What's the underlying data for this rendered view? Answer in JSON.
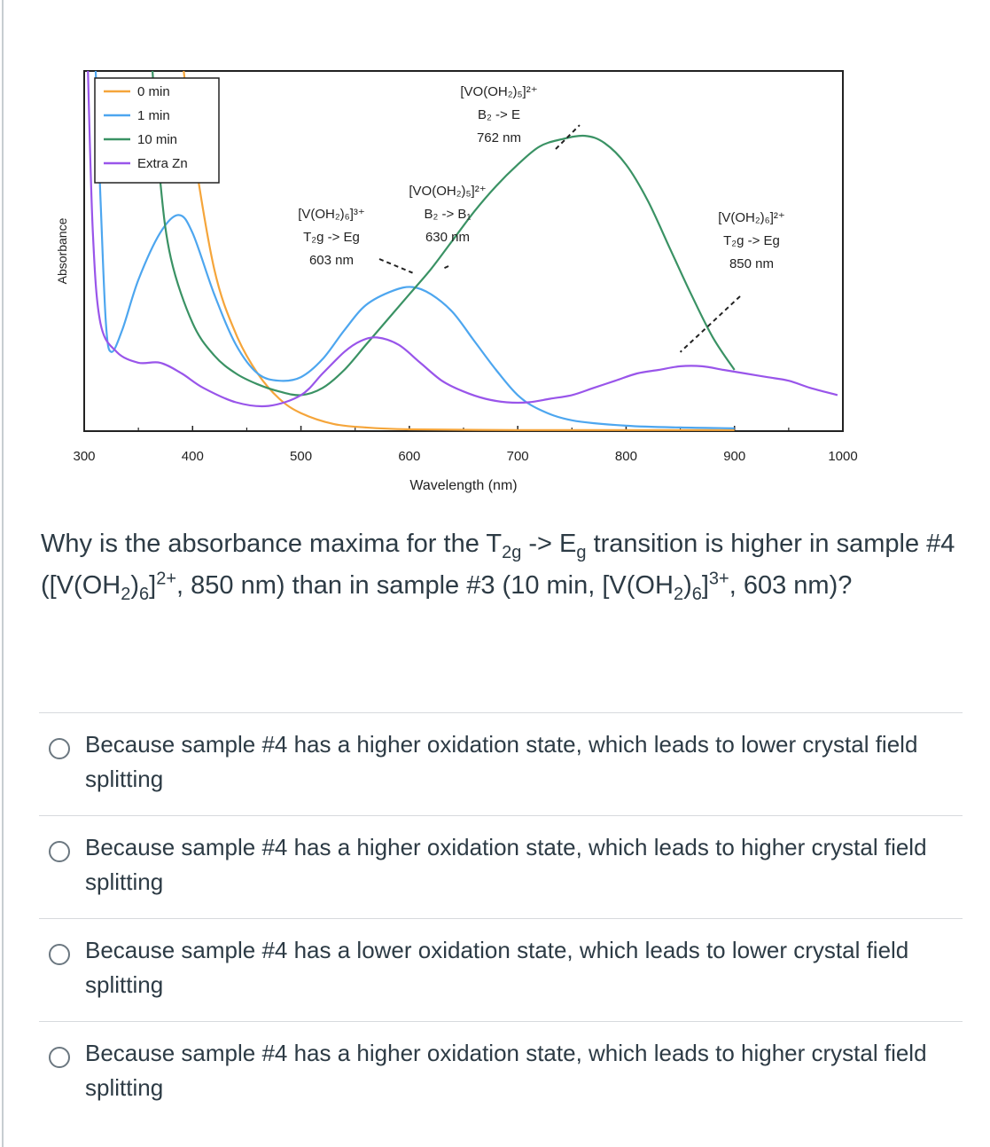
{
  "chart_data": {
    "type": "line",
    "xlabel": "Wavelength (nm)",
    "ylabel": "Absorbance",
    "xlim": [
      300,
      1000
    ],
    "ylim": [
      0,
      1
    ],
    "x_ticks": [
      "300",
      "400",
      "500",
      "600",
      "700",
      "800",
      "900",
      "1000"
    ],
    "grid": false,
    "legend_position": "top-left",
    "series": [
      {
        "name": "0 min",
        "color": "#f5a53a",
        "points": [
          [
            390,
            1.05
          ],
          [
            400,
            0.8
          ],
          [
            420,
            0.45
          ],
          [
            440,
            0.27
          ],
          [
            460,
            0.16
          ],
          [
            480,
            0.09
          ],
          [
            500,
            0.05
          ],
          [
            530,
            0.02
          ],
          [
            560,
            0.01
          ],
          [
            600,
            0.005
          ],
          [
            700,
            0.003
          ],
          [
            800,
            0.003
          ],
          [
            900,
            0.003
          ]
        ]
      },
      {
        "name": "1 min",
        "color": "#4da6ef",
        "points": [
          [
            310,
            1.05
          ],
          [
            315,
            0.65
          ],
          [
            320,
            0.3
          ],
          [
            325,
            0.22
          ],
          [
            335,
            0.28
          ],
          [
            350,
            0.42
          ],
          [
            370,
            0.55
          ],
          [
            387,
            0.6
          ],
          [
            400,
            0.55
          ],
          [
            420,
            0.38
          ],
          [
            440,
            0.24
          ],
          [
            460,
            0.16
          ],
          [
            480,
            0.14
          ],
          [
            500,
            0.15
          ],
          [
            520,
            0.2
          ],
          [
            540,
            0.28
          ],
          [
            560,
            0.35
          ],
          [
            585,
            0.39
          ],
          [
            603,
            0.4
          ],
          [
            620,
            0.38
          ],
          [
            640,
            0.33
          ],
          [
            660,
            0.25
          ],
          [
            680,
            0.17
          ],
          [
            700,
            0.1
          ],
          [
            720,
            0.06
          ],
          [
            750,
            0.03
          ],
          [
            800,
            0.015
          ],
          [
            850,
            0.01
          ],
          [
            900,
            0.008
          ]
        ]
      },
      {
        "name": "10 min",
        "color": "#3a9264",
        "points": [
          [
            362,
            1.05
          ],
          [
            370,
            0.7
          ],
          [
            380,
            0.48
          ],
          [
            400,
            0.3
          ],
          [
            420,
            0.21
          ],
          [
            440,
            0.16
          ],
          [
            460,
            0.13
          ],
          [
            480,
            0.11
          ],
          [
            500,
            0.1
          ],
          [
            520,
            0.12
          ],
          [
            540,
            0.17
          ],
          [
            560,
            0.24
          ],
          [
            580,
            0.31
          ],
          [
            600,
            0.38
          ],
          [
            620,
            0.45
          ],
          [
            640,
            0.53
          ],
          [
            660,
            0.61
          ],
          [
            680,
            0.68
          ],
          [
            700,
            0.74
          ],
          [
            720,
            0.79
          ],
          [
            740,
            0.81
          ],
          [
            762,
            0.82
          ],
          [
            780,
            0.8
          ],
          [
            800,
            0.74
          ],
          [
            820,
            0.64
          ],
          [
            840,
            0.51
          ],
          [
            860,
            0.38
          ],
          [
            880,
            0.26
          ],
          [
            900,
            0.17
          ]
        ]
      },
      {
        "name": "Extra Zn",
        "color": "#9955ea",
        "points": [
          [
            303,
            1.05
          ],
          [
            308,
            0.55
          ],
          [
            315,
            0.3
          ],
          [
            330,
            0.22
          ],
          [
            350,
            0.19
          ],
          [
            370,
            0.19
          ],
          [
            390,
            0.16
          ],
          [
            410,
            0.12
          ],
          [
            440,
            0.08
          ],
          [
            470,
            0.07
          ],
          [
            500,
            0.1
          ],
          [
            520,
            0.16
          ],
          [
            540,
            0.22
          ],
          [
            555,
            0.25
          ],
          [
            570,
            0.26
          ],
          [
            590,
            0.24
          ],
          [
            610,
            0.19
          ],
          [
            630,
            0.14
          ],
          [
            650,
            0.11
          ],
          [
            670,
            0.09
          ],
          [
            690,
            0.08
          ],
          [
            710,
            0.08
          ],
          [
            730,
            0.09
          ],
          [
            750,
            0.1
          ],
          [
            770,
            0.12
          ],
          [
            790,
            0.14
          ],
          [
            810,
            0.16
          ],
          [
            830,
            0.17
          ],
          [
            850,
            0.18
          ],
          [
            870,
            0.18
          ],
          [
            890,
            0.17
          ],
          [
            910,
            0.16
          ],
          [
            930,
            0.15
          ],
          [
            950,
            0.14
          ],
          [
            970,
            0.12
          ],
          [
            995,
            0.1
          ]
        ]
      }
    ],
    "annotations": [
      {
        "lines": [
          "[VO(OH₂)₅]²⁺",
          "B₂ -> E",
          "762 nm"
        ],
        "arrow_to": [
          762,
          0.82
        ]
      },
      {
        "lines": [
          "[VO(OH₂)₅]²⁺",
          "B₂ -> B₁",
          "630 nm"
        ],
        "arrow_to": [
          630,
          0.42
        ]
      },
      {
        "lines": [
          "[V(OH₂)₆]³⁺",
          "T₂g -> Eg",
          "603 nm"
        ],
        "arrow_to": [
          603,
          0.41
        ]
      },
      {
        "lines": [
          "[V(OH₂)₆]²⁺",
          "T₂g -> Eg",
          "850 nm"
        ],
        "arrow_to": [
          850,
          0.19
        ]
      }
    ]
  },
  "question": {
    "p1": "Why is the absorbance maxima for the T",
    "s1": "2g",
    "p2": " -> E",
    "s2": "g",
    "p3": " transition is higher in sample #4 ([V(OH",
    "s3": "2",
    "p4": ")",
    "s4": "6",
    "p5": "]",
    "s5": "2+",
    "p6": ", 850 nm) than in sample #3 (10 min, [V(OH",
    "s6": "2",
    "p7": ")",
    "s7": "6",
    "p8": "]",
    "s8": "3+",
    "p9": ", 603 nm)?"
  },
  "answers": [
    "Because sample #4 has a higher oxidation state, which leads to lower crystal field splitting",
    "Because sample #4 has a higher oxidation state, which leads to higher crystal field splitting",
    "Because sample #4 has a lower oxidation state, which leads to lower crystal field splitting",
    "Because sample #4 has a higher oxidation state, which leads to higher crystal field splitting"
  ]
}
